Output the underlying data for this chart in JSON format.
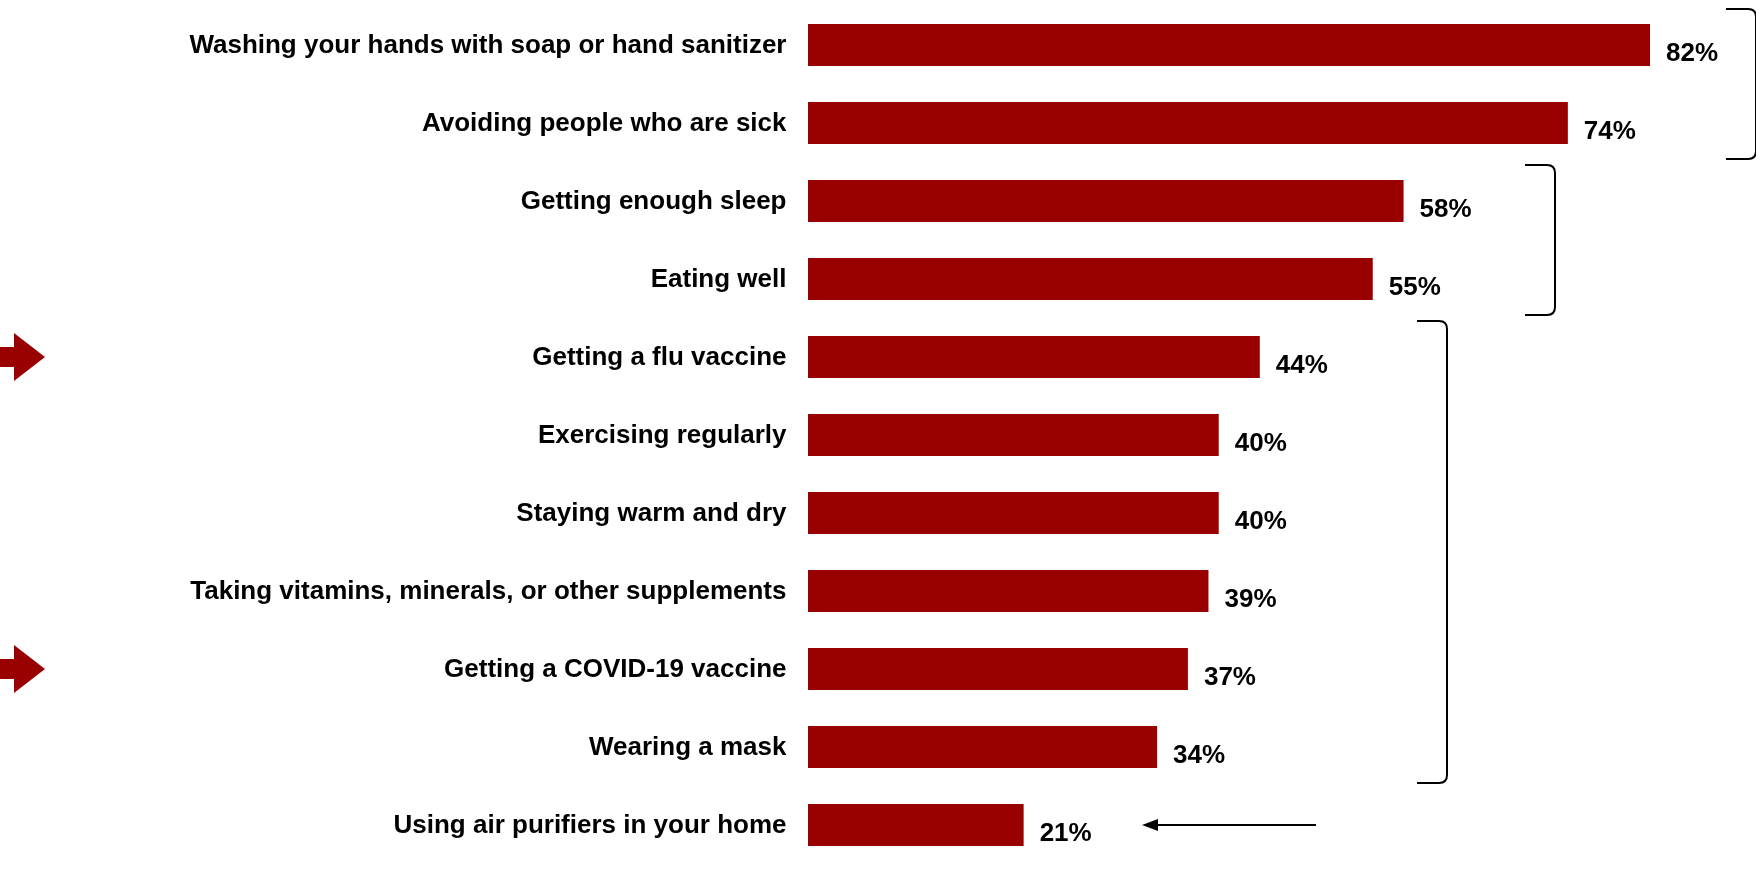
{
  "chart_data": {
    "type": "bar",
    "orientation": "horizontal",
    "data_labels": true,
    "categories": [
      "Washing your hands with soap or hand sanitizer",
      "Avoiding people who are sick",
      "Getting enough sleep",
      "Eating well",
      "Getting a flu vaccine",
      "Exercising regularly",
      "Staying warm and dry",
      "Taking vitamins, minerals, or other supplements",
      "Getting a COVID-19 vaccine",
      "Wearing a mask",
      "Using air purifiers in your home"
    ],
    "values": [
      82,
      74,
      58,
      55,
      44,
      40,
      40,
      39,
      37,
      34,
      21
    ],
    "value_labels": [
      "82%",
      "74%",
      "58%",
      "55%",
      "44%",
      "40%",
      "40%",
      "39%",
      "37%",
      "34%",
      "21%"
    ],
    "color": "#990000"
  }
}
